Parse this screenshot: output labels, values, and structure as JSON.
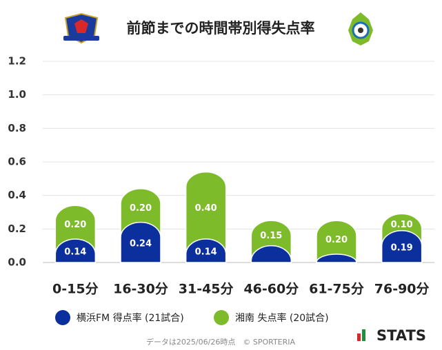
{
  "chart_data": {
    "type": "bar",
    "title": "前節までの時間帯別得失点率",
    "categories": [
      "0-15分",
      "16-30分",
      "31-45分",
      "46-60分",
      "61-75分",
      "76-90分"
    ],
    "series": [
      {
        "name": "横浜FM 得点率 (21試合)",
        "color": "#0b2f9c",
        "values": [
          0.14,
          0.24,
          0.14,
          0.1,
          0.05,
          0.19
        ],
        "value_labels": [
          "0.14",
          "0.24",
          "0.14",
          null,
          null,
          "0.19"
        ]
      },
      {
        "name": "湘南 失点率 (20試合)",
        "color": "#7dbb2a",
        "values": [
          0.2,
          0.2,
          0.4,
          0.15,
          0.2,
          0.1
        ],
        "value_labels": [
          "0.20",
          "0.20",
          "0.40",
          "0.15",
          "0.20",
          "0.10"
        ]
      }
    ],
    "stacked": true,
    "ylim": [
      0,
      1.2
    ],
    "yticks": [
      {
        "value": 0,
        "label": "0.0"
      },
      {
        "value": 0.2,
        "label": "0.2"
      },
      {
        "value": 0.4,
        "label": "0.4"
      },
      {
        "value": 0.6,
        "label": "0.6"
      },
      {
        "value": 0.8,
        "label": "0.8"
      },
      {
        "value": 1,
        "label": "1.0"
      },
      {
        "value": 1.2,
        "label": "1.2"
      }
    ],
    "grid": true,
    "footer": "データは2025/06/26時点　© SPORTERIA",
    "brand": "STATS"
  }
}
